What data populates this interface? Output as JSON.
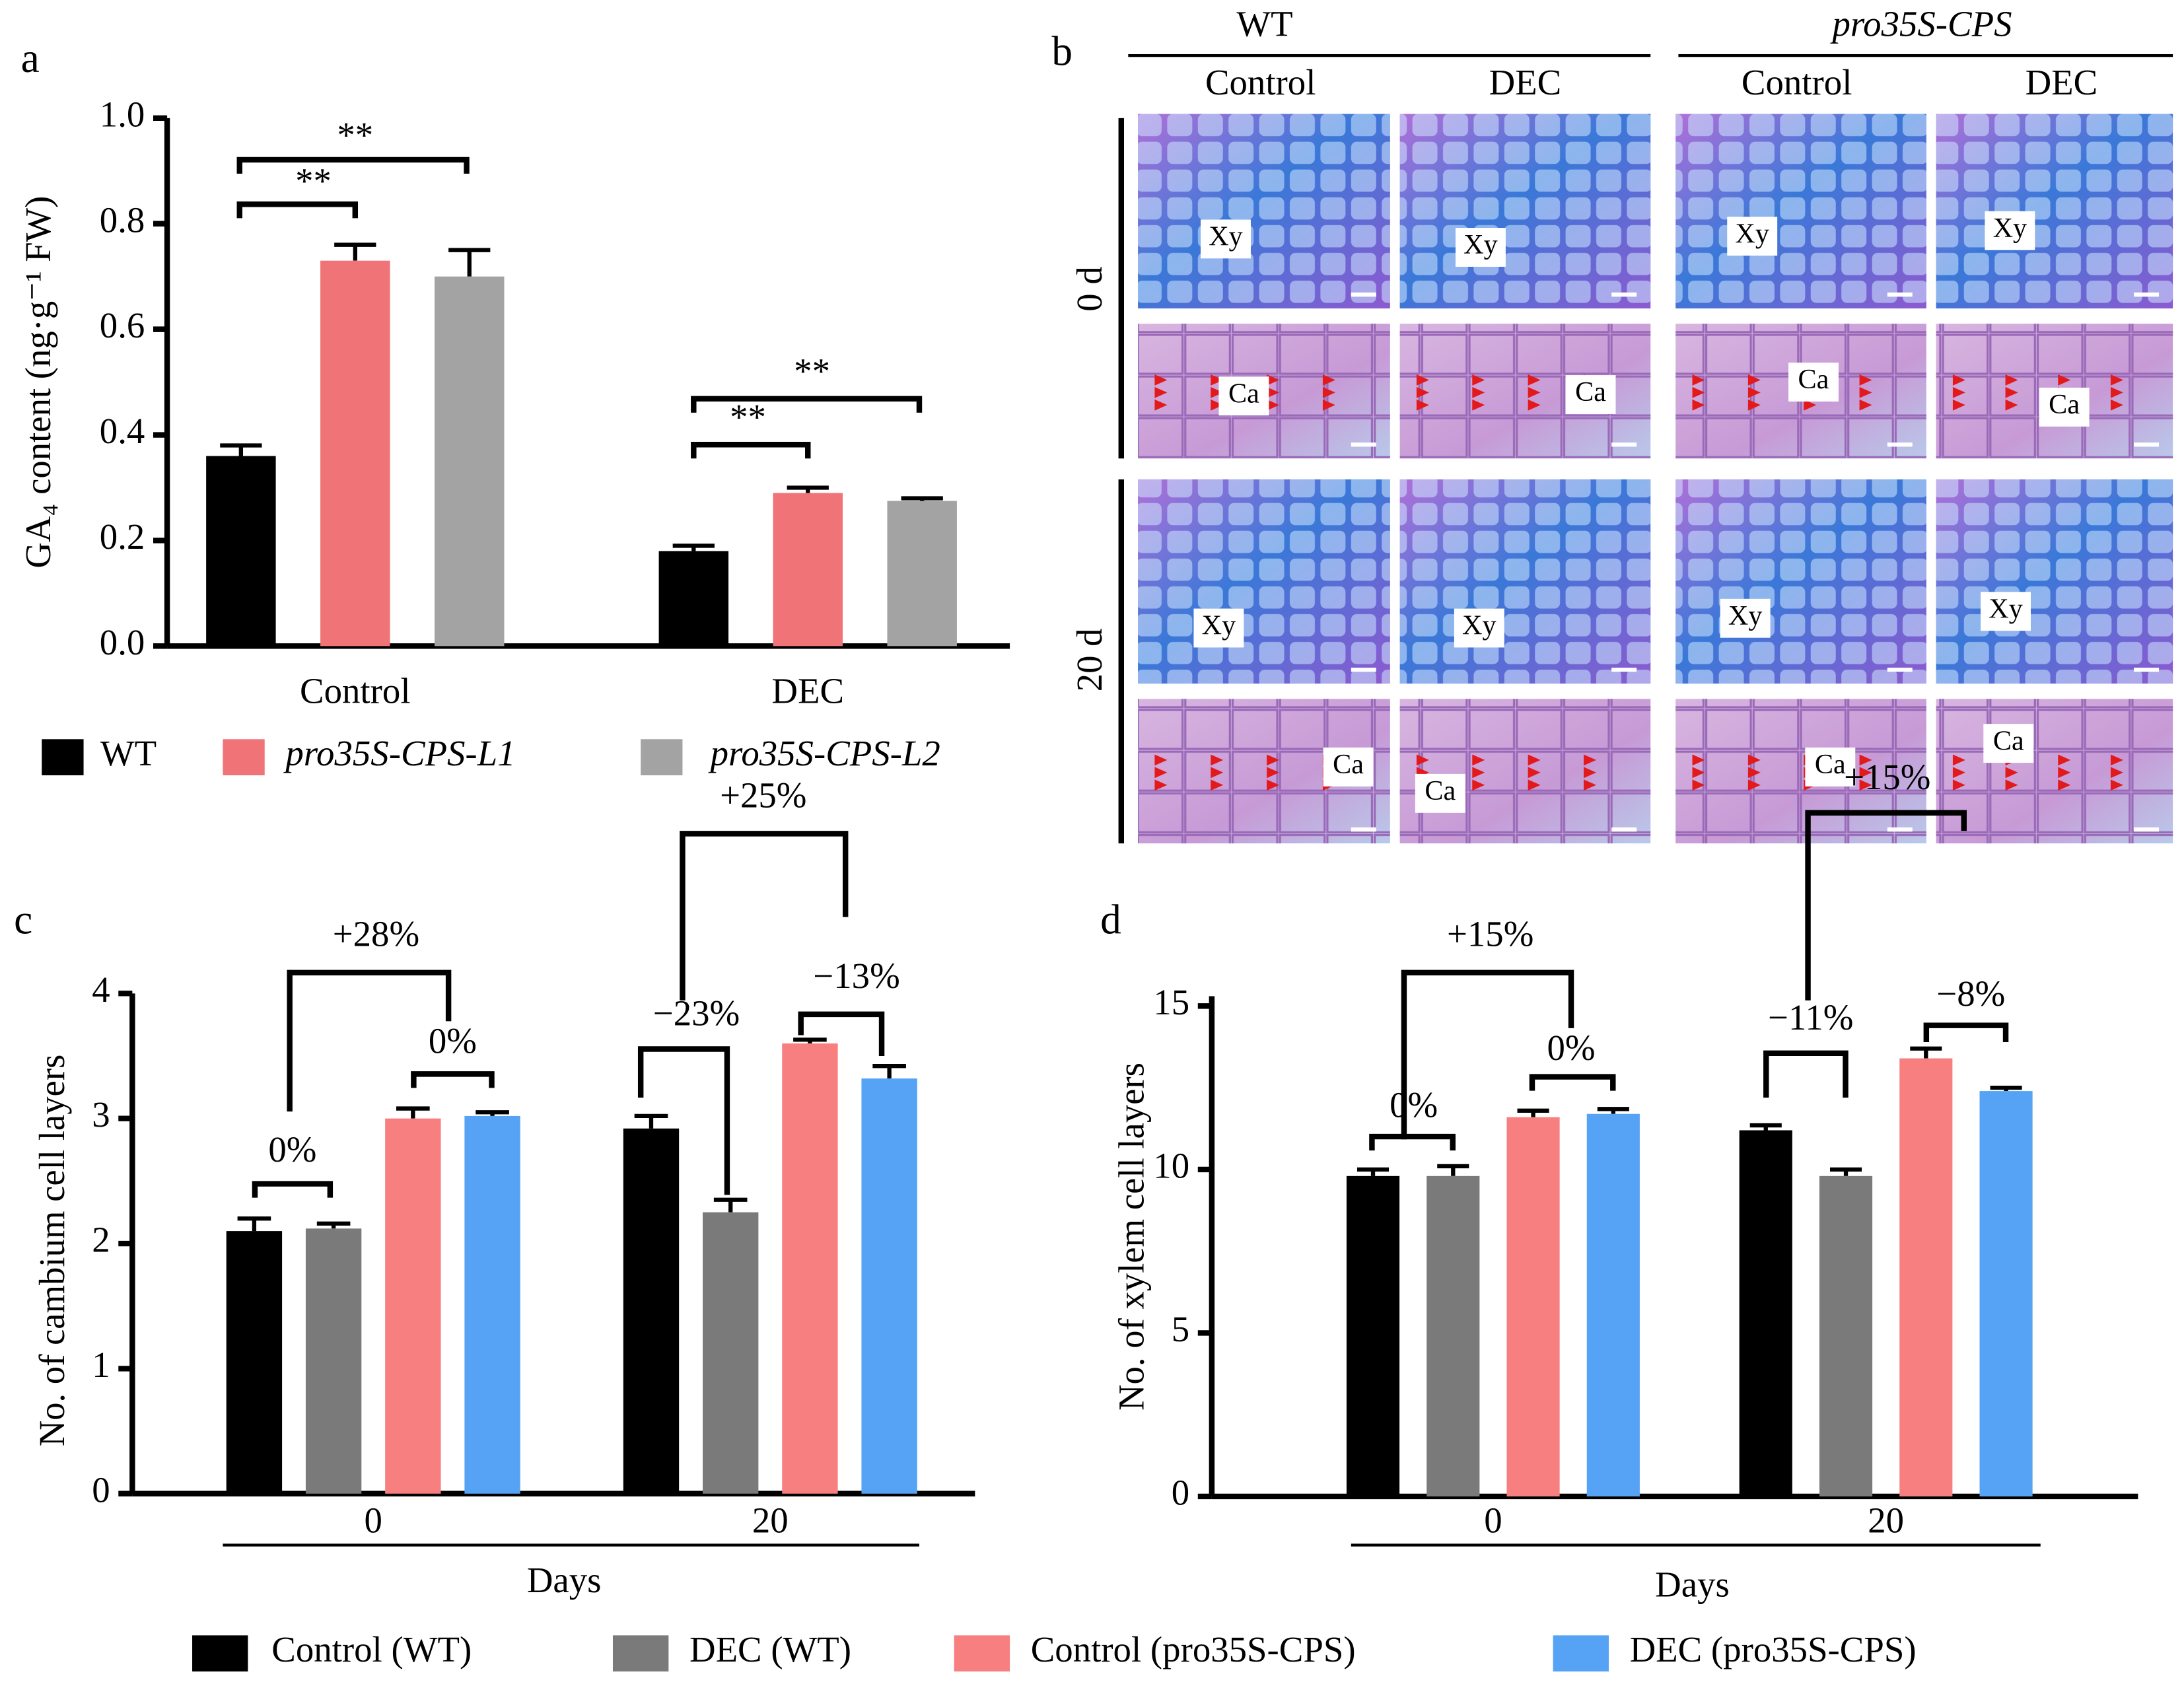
{
  "chart_data": [
    {
      "type": "bar",
      "panel": "a",
      "ylabel": "GA₄ content (ng·g⁻¹ FW)",
      "categories": [
        "Control",
        "DEC"
      ],
      "series": [
        {
          "name": "WT",
          "color": "#000000",
          "values": [
            0.36,
            0.18
          ],
          "errors": [
            0.02,
            0.01
          ]
        },
        {
          "name": "pro35S-CPS-L1",
          "color": "#f07378",
          "values": [
            0.73,
            0.29
          ],
          "errors": [
            0.03,
            0.01
          ]
        },
        {
          "name": "pro35S-CPS-L2",
          "color": "#a3a3a3",
          "values": [
            0.7,
            0.275
          ],
          "errors": [
            0.05,
            0.005
          ]
        }
      ],
      "ylim": [
        0,
        1.0
      ],
      "yticks": [
        {
          "value": 0,
          "label": "0.0"
        },
        {
          "value": 0.2,
          "label": "0.2"
        },
        {
          "value": 0.4,
          "label": "0.4"
        },
        {
          "value": 0.6,
          "label": "0.6"
        },
        {
          "value": 0.8,
          "label": "0.8"
        },
        {
          "value": 1.0,
          "label": "1.0"
        }
      ],
      "annotations": [
        "**",
        "**",
        "**",
        "**"
      ]
    },
    {
      "type": "bar",
      "panel": "c",
      "ylabel": "No. of cambium cell layers",
      "xlabel": "Days",
      "categories": [
        "0",
        "20"
      ],
      "series": [
        {
          "name": "Control (WT)",
          "color": "#000000",
          "values": [
            2.1,
            2.92
          ],
          "errors": [
            0.1,
            0.1
          ]
        },
        {
          "name": "DEC (WT)",
          "color": "#7a7a7a",
          "values": [
            2.12,
            2.25
          ],
          "errors": [
            0.04,
            0.1
          ]
        },
        {
          "name": "Control (pro35S-CPS)",
          "color": "#f77f7f",
          "values": [
            3.0,
            3.6
          ],
          "errors": [
            0.08,
            0.03
          ]
        },
        {
          "name": "DEC (pro35S-CPS)",
          "color": "#56a3f5",
          "values": [
            3.02,
            3.32
          ],
          "errors": [
            0.03,
            0.1
          ]
        }
      ],
      "ylim": [
        0,
        4
      ],
      "yticks": [
        0,
        1,
        2,
        3,
        4
      ],
      "annotations": [
        "0%",
        "0%",
        "+28%",
        "+25%",
        "−23%",
        "−13%"
      ]
    },
    {
      "type": "bar",
      "panel": "d",
      "ylabel": "No. of xylem cell layers",
      "xlabel": "Days",
      "categories": [
        "0",
        "20"
      ],
      "series": [
        {
          "color": "#000000",
          "values": [
            9.8,
            11.2
          ],
          "errors": [
            0.2,
            0.15
          ]
        },
        {
          "color": "#7a7a7a",
          "values": [
            9.8,
            9.8
          ],
          "errors": [
            0.3,
            0.2
          ]
        },
        {
          "color": "#f77f7f",
          "values": [
            11.6,
            13.4
          ],
          "errors": [
            0.2,
            0.3
          ]
        },
        {
          "color": "#56a3f5",
          "values": [
            11.7,
            12.4
          ],
          "errors": [
            0.15,
            0.1
          ]
        }
      ],
      "ylim": [
        0,
        15.3
      ],
      "yticks": [
        0,
        5,
        10,
        15
      ],
      "annotations": [
        "0%",
        "0%",
        "+15%",
        "+15%",
        "−11%",
        "−8%"
      ]
    }
  ],
  "micrographs": {
    "panel": "b",
    "genotypes": [
      "WT",
      "pro35S-CPS"
    ],
    "treatments": [
      "Control",
      "DEC",
      "Control",
      "DEC"
    ],
    "times": [
      "0 d",
      "20 d"
    ],
    "tissue_labels": [
      "Xy",
      "Ca"
    ]
  }
}
